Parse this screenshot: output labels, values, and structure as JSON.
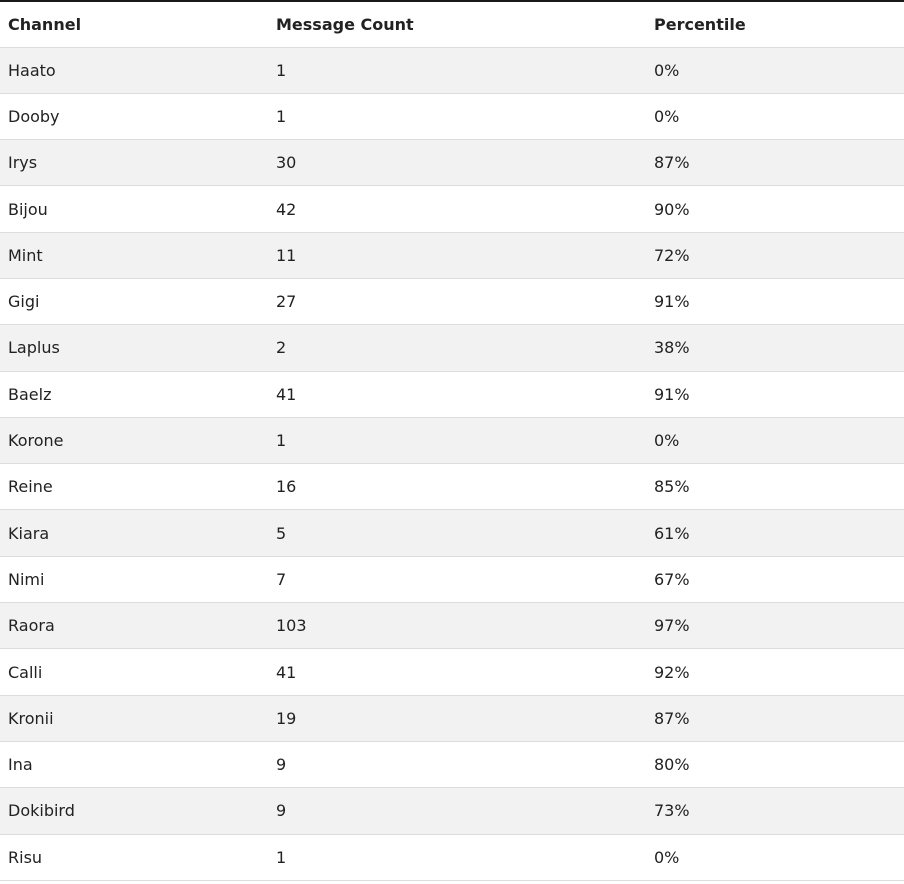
{
  "table": {
    "headers": [
      "Channel",
      "Message Count",
      "Percentile"
    ],
    "rows": [
      [
        "Haato",
        "1",
        "0%"
      ],
      [
        "Dooby",
        "1",
        "0%"
      ],
      [
        "Irys",
        "30",
        "87%"
      ],
      [
        "Bijou",
        "42",
        "90%"
      ],
      [
        "Mint",
        "11",
        "72%"
      ],
      [
        "Gigi",
        "27",
        "91%"
      ],
      [
        "Laplus",
        "2",
        "38%"
      ],
      [
        "Baelz",
        "41",
        "91%"
      ],
      [
        "Korone",
        "1",
        "0%"
      ],
      [
        "Reine",
        "16",
        "85%"
      ],
      [
        "Kiara",
        "5",
        "61%"
      ],
      [
        "Nimi",
        "7",
        "67%"
      ],
      [
        "Raora",
        "103",
        "97%"
      ],
      [
        "Calli",
        "41",
        "92%"
      ],
      [
        "Kronii",
        "19",
        "87%"
      ],
      [
        "Ina",
        "9",
        "80%"
      ],
      [
        "Dokibird",
        "9",
        "73%"
      ],
      [
        "Risu",
        "1",
        "0%"
      ]
    ]
  }
}
